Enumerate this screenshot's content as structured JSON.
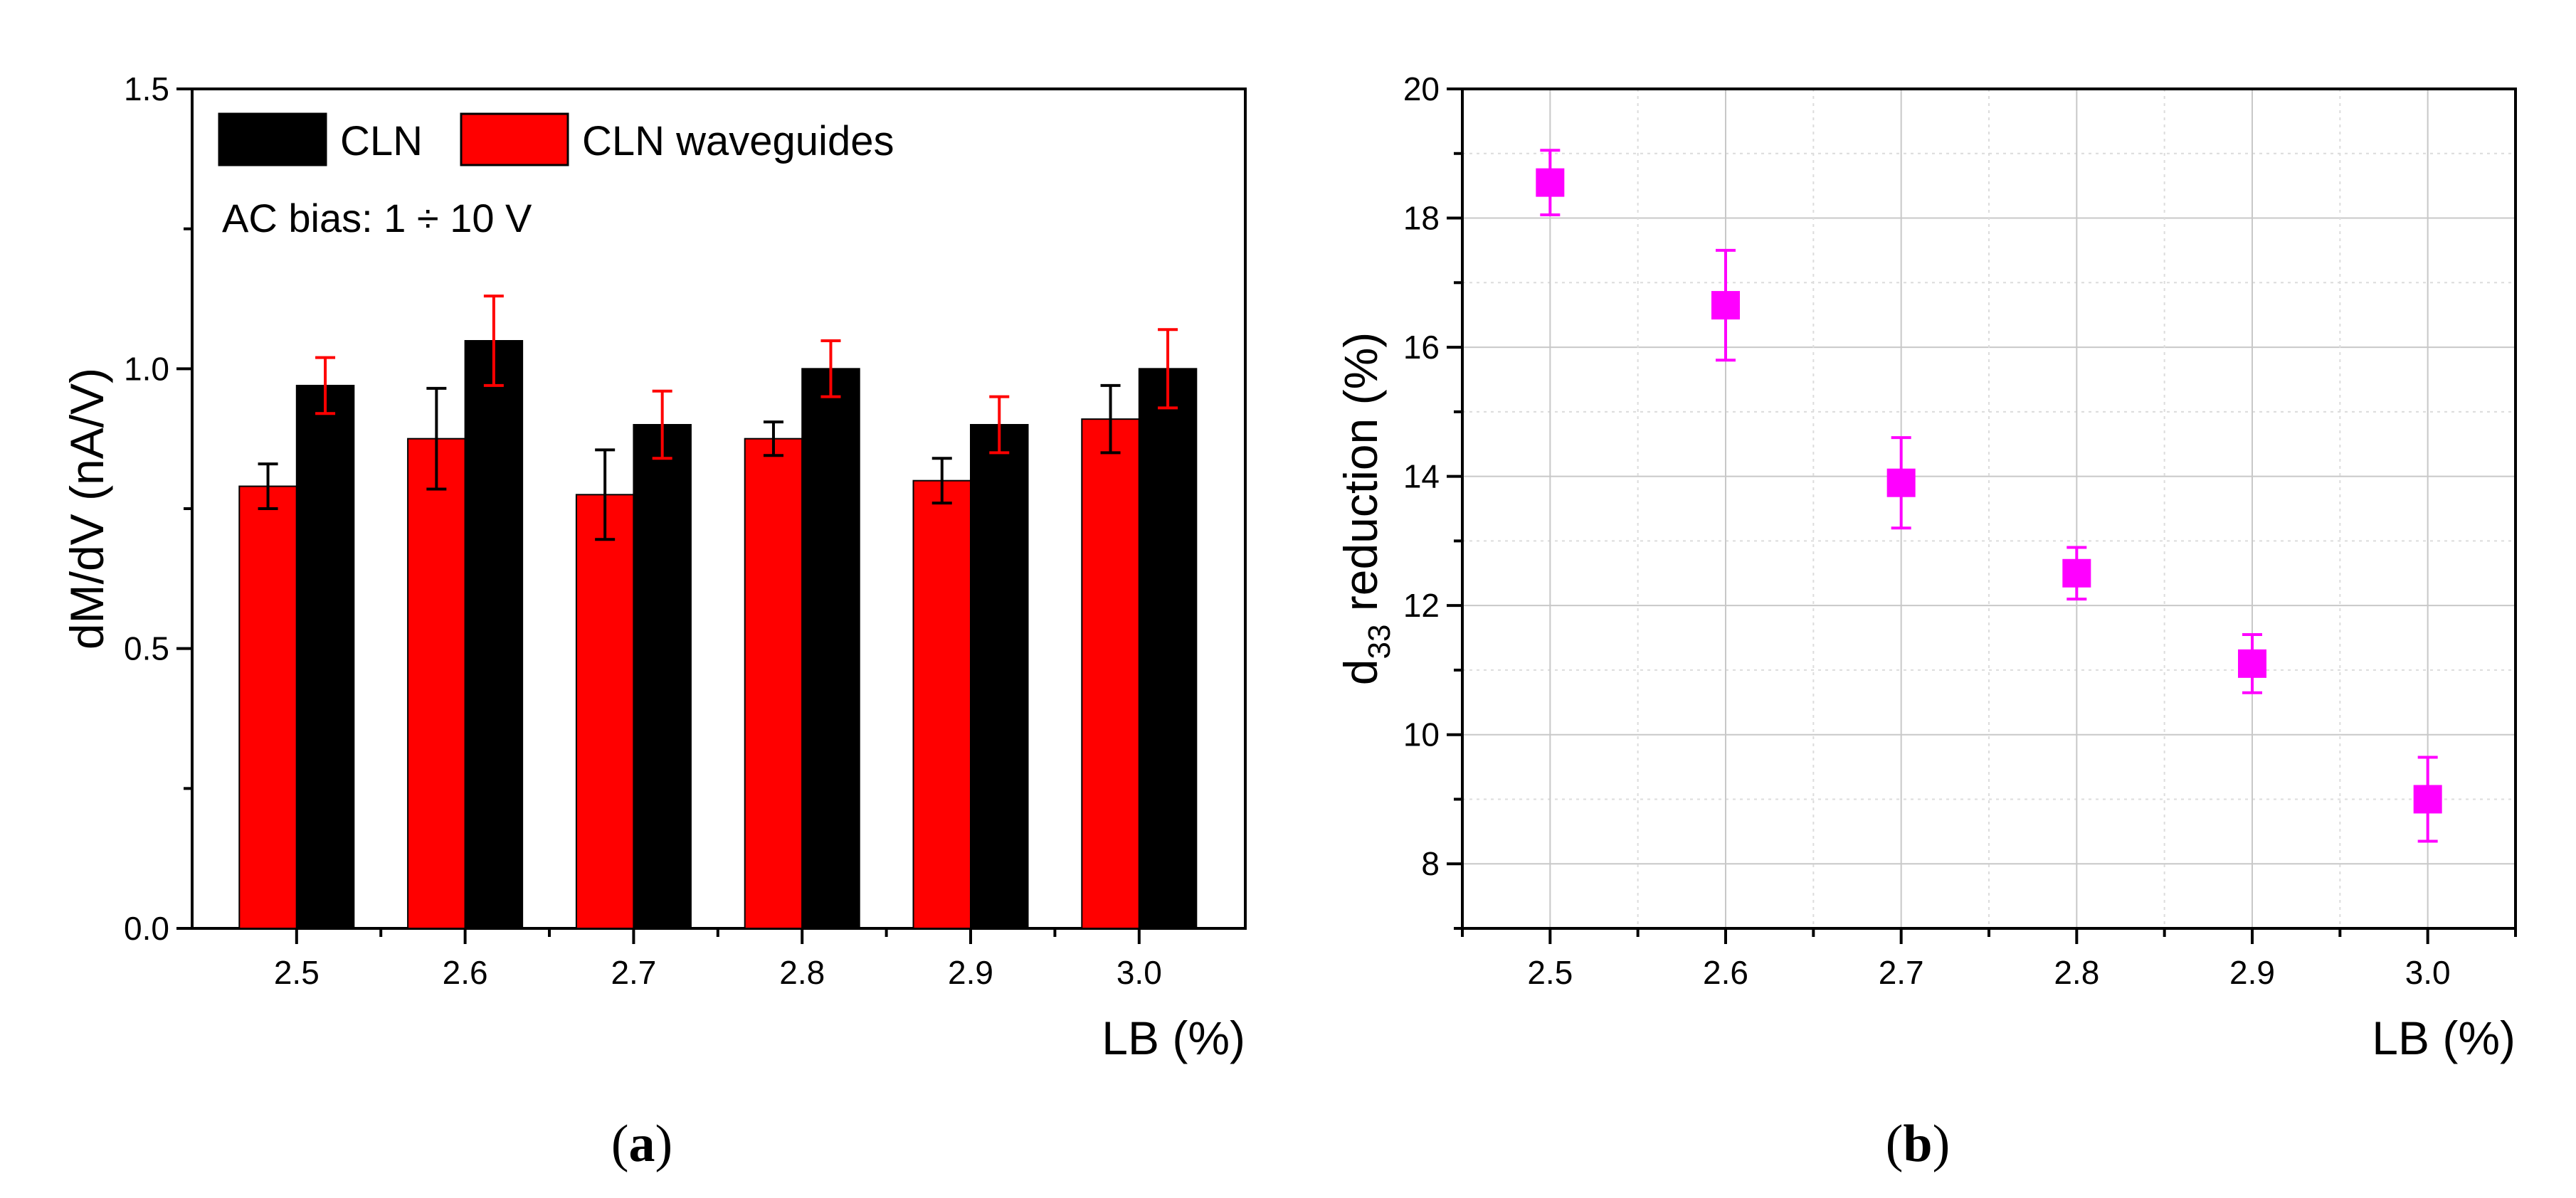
{
  "chart_data": [
    {
      "type": "bar",
      "panel_label": "a",
      "ylabel": "dM/dV (nA/V)",
      "xlabel": "LB (%)",
      "ylim": [
        0.0,
        1.5
      ],
      "yticks": [
        "0.0",
        "0.5",
        "1.0",
        "1.5"
      ],
      "categories": [
        "2.5",
        "2.6",
        "2.7",
        "2.8",
        "2.9",
        "3.0"
      ],
      "annotation": "AC bias: 1 ÷ 10 V",
      "legend_position": "top-left",
      "series": [
        {
          "name": "CLN waveguides",
          "color": "#ff0000",
          "error_color": "#000000",
          "values": [
            0.79,
            0.875,
            0.775,
            0.875,
            0.8,
            0.91
          ],
          "errors": [
            0.04,
            0.09,
            0.08,
            0.03,
            0.04,
            0.06
          ]
        },
        {
          "name": "CLN",
          "color": "#000000",
          "error_color": "#ff0000",
          "values": [
            0.97,
            1.05,
            0.9,
            1.0,
            0.9,
            1.0
          ],
          "errors": [
            0.05,
            0.08,
            0.06,
            0.05,
            0.05,
            0.07
          ]
        }
      ]
    },
    {
      "type": "scatter",
      "panel_label": "b",
      "ylabel_main": "d",
      "ylabel_sub": "33",
      "ylabel_rest": " reduction (%)",
      "xlabel": "LB (%)",
      "xlim": [
        2.45,
        3.05
      ],
      "ylim": [
        7,
        20
      ],
      "xticks": [
        "2.5",
        "2.6",
        "2.7",
        "2.8",
        "2.9",
        "3.0"
      ],
      "yticks": [
        "8",
        "10",
        "12",
        "14",
        "16",
        "18",
        "20"
      ],
      "grid": true,
      "color": "#ff00ff",
      "x": [
        2.5,
        2.6,
        2.7,
        2.8,
        2.9,
        3.0
      ],
      "y": [
        18.55,
        16.65,
        13.9,
        12.5,
        11.1,
        9.0
      ],
      "yerr_low": [
        0.5,
        0.85,
        0.7,
        0.4,
        0.45,
        0.65
      ],
      "yerr_high": [
        0.5,
        0.85,
        0.7,
        0.4,
        0.45,
        0.65
      ]
    }
  ]
}
